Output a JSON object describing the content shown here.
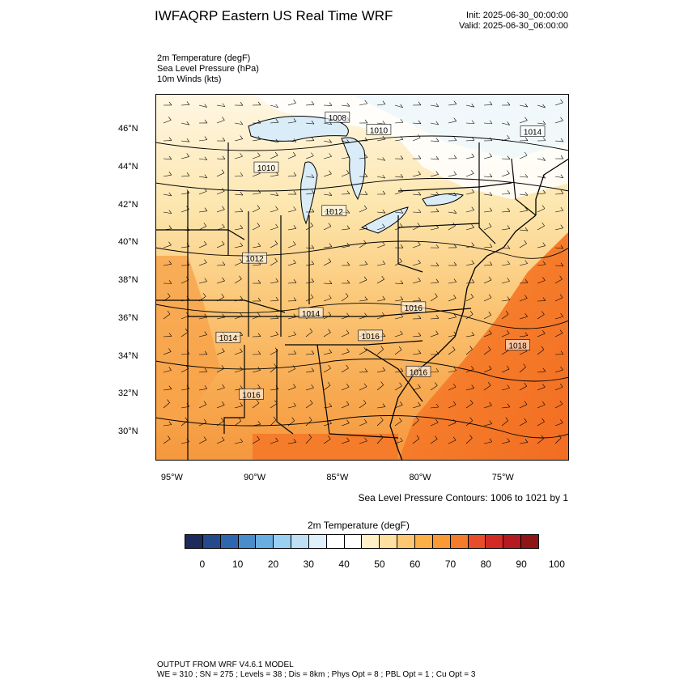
{
  "header": {
    "title": "IWFAQRP Eastern US Real Time WRF",
    "init": "Init: 2025-06-30_00:00:00",
    "valid": "Valid: 2025-06-30_06:00:00"
  },
  "fields": {
    "temp": "2m Temperature   (degF)",
    "slp": "Sea Level Pressure   (hPa)",
    "wind": "10m Winds   (kts)"
  },
  "map": {
    "lon_range": [
      -96,
      -71
    ],
    "lat_range": [
      28.5,
      47.9
    ],
    "lon_ticks": [
      {
        "value": -95,
        "label": "95°W"
      },
      {
        "value": -90,
        "label": "90°W"
      },
      {
        "value": -85,
        "label": "85°W"
      },
      {
        "value": -80,
        "label": "80°W"
      },
      {
        "value": -75,
        "label": "75°W"
      }
    ],
    "lat_ticks": [
      {
        "value": 46,
        "label": "46°N"
      },
      {
        "value": 44,
        "label": "44°N"
      },
      {
        "value": 42,
        "label": "42°N"
      },
      {
        "value": 40,
        "label": "40°N"
      },
      {
        "value": 38,
        "label": "38°N"
      },
      {
        "value": 36,
        "label": "36°N"
      },
      {
        "value": 34,
        "label": "34°N"
      },
      {
        "value": 32,
        "label": "32°N"
      },
      {
        "value": 30,
        "label": "30°N"
      }
    ],
    "pressure_labels": [
      {
        "text": "1008",
        "lon": -85.0,
        "lat": 46.65
      },
      {
        "text": "1010",
        "lon": -82.5,
        "lat": 46.0
      },
      {
        "text": "1010",
        "lon": -89.3,
        "lat": 44.0
      },
      {
        "text": "1014",
        "lon": -73.2,
        "lat": 45.9
      },
      {
        "text": "1012",
        "lon": -85.2,
        "lat": 41.7
      },
      {
        "text": "1012",
        "lon": -90.0,
        "lat": 39.2
      },
      {
        "text": "1016",
        "lon": -80.4,
        "lat": 36.6
      },
      {
        "text": "1014",
        "lon": -86.6,
        "lat": 36.3
      },
      {
        "text": "1014",
        "lon": -91.6,
        "lat": 35.0
      },
      {
        "text": "1016",
        "lon": -83.0,
        "lat": 35.1
      },
      {
        "text": "1018",
        "lon": -74.1,
        "lat": 34.6
      },
      {
        "text": "1016",
        "lon": -80.1,
        "lat": 33.2
      },
      {
        "text": "1016",
        "lon": -90.2,
        "lat": 32.0
      }
    ]
  },
  "contour_note": "Sea Level Pressure Contours: 1006 to 1021 by 1",
  "colorbar": {
    "title": "2m Temperature  (degF)",
    "colors": [
      "#1c2a5c",
      "#244a8c",
      "#2f66b0",
      "#4a8ccc",
      "#6aaee0",
      "#9bd0f2",
      "#bfe0f4",
      "#dff0fa",
      "#ffffff",
      "#ffffff",
      "#fff0c8",
      "#ffe0a0",
      "#ffc870",
      "#fdb045",
      "#f99a35",
      "#f57c2a",
      "#e84c2a",
      "#d42a26",
      "#b41a20",
      "#8e1616"
    ],
    "labels": [
      "0",
      "10",
      "20",
      "30",
      "40",
      "50",
      "60",
      "70",
      "80",
      "90",
      "100"
    ]
  },
  "footer": {
    "line1": "OUTPUT FROM WRF V4.6.1 MODEL",
    "line2": "WE = 310 ; SN = 275 ; Levels = 38 ; Dis = 8km ; Phys Opt = 8 ; PBL Opt = 1 ; Cu Opt = 3"
  }
}
